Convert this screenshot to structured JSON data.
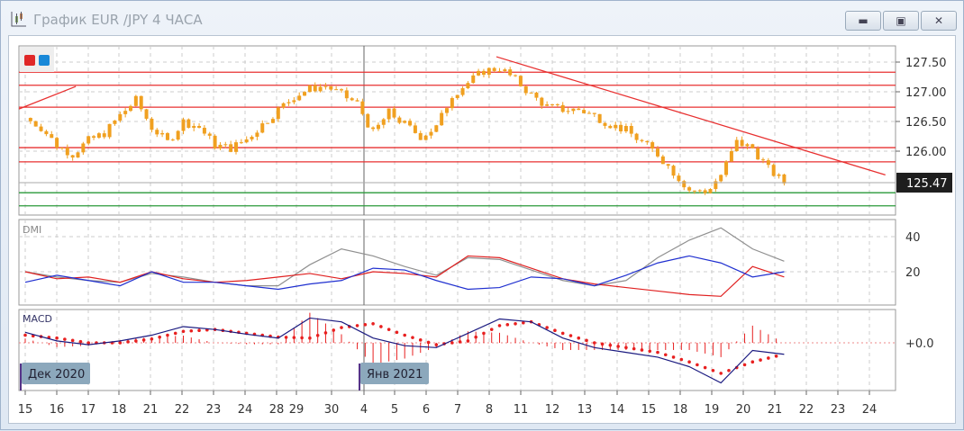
{
  "window": {
    "title": "График EUR /JPY  4 ЧАСА",
    "buttons": [
      "minimize",
      "maximize",
      "close"
    ]
  },
  "colors": {
    "candle": "#f0a020",
    "resistance": "#e83030",
    "support": "#2a9a3a",
    "dmi_adx": "#909090",
    "dmi_plus": "#2030d0",
    "dmi_minus": "#e02020",
    "macd": "#1a1a80",
    "signal": "#e82020",
    "price_tag": "#1e1e1e"
  },
  "chart_data": [
    {
      "type": "candlestick",
      "panel": "price",
      "x_ticks": [
        "15",
        "16",
        "17",
        "18",
        "21",
        "22",
        "23",
        "24",
        "28",
        "29",
        "30",
        "4",
        "5",
        "6",
        "7",
        "8",
        "11",
        "12",
        "13",
        "14",
        "15",
        "18",
        "19",
        "20",
        "21",
        "22",
        "23",
        "24"
      ],
      "month_labels": [
        {
          "label": "Дек 2020",
          "at": "15"
        },
        {
          "label": "Янв 2021",
          "at": "4"
        }
      ],
      "y_ticks": [
        "127.50",
        "127.00",
        "126.50",
        "126.00"
      ],
      "current_price": "125.47",
      "closes_half_day": [
        126.56,
        126.4,
        126.1,
        125.95,
        126.18,
        126.3,
        126.6,
        126.86,
        126.4,
        126.15,
        126.5,
        126.4,
        126.1,
        126.05,
        126.2,
        126.45,
        126.7,
        126.92,
        127.05,
        127.1,
        126.95,
        126.8,
        126.3,
        126.65,
        126.45,
        126.25,
        126.4,
        126.95,
        127.15,
        127.35,
        127.4,
        127.2,
        126.95,
        126.75,
        126.7,
        126.7,
        126.6,
        126.45,
        126.35,
        126.15,
        125.95,
        125.65,
        125.35,
        125.3,
        125.6,
        126.15,
        126.05,
        125.7,
        125.47
      ],
      "resistance_levels": [
        127.33,
        127.11,
        126.74,
        126.06,
        125.82
      ],
      "support_levels": [
        125.3,
        125.08
      ],
      "trend_lines": [
        [
          [
            -0.2,
            126.71
          ],
          [
            1.6,
            127.09
          ]
        ],
        [
          [
            14.9,
            127.59
          ],
          [
            27.2,
            125.6
          ]
        ]
      ],
      "ylim": [
        124.9,
        127.8
      ]
    },
    {
      "type": "line",
      "panel": "DMI",
      "title": "DMI",
      "y_ticks": [
        "40",
        "20"
      ],
      "ylim": [
        0,
        50
      ],
      "series": [
        {
          "values": [
            20,
            17,
            15,
            14,
            19,
            17,
            14,
            12,
            12,
            24,
            33,
            29,
            23,
            18,
            28,
            27,
            21,
            15,
            12,
            15,
            28,
            38,
            45,
            33,
            26
          ]
        },
        {
          "values": [
            20,
            16,
            17,
            14,
            20,
            16,
            14,
            15,
            17,
            19,
            16,
            20,
            19,
            17,
            29,
            28,
            22,
            16,
            13,
            11,
            9,
            7,
            6,
            23,
            17
          ]
        },
        {
          "values": [
            14,
            18,
            15,
            12,
            20,
            14,
            14,
            12,
            10,
            13,
            15,
            22,
            21,
            15,
            10,
            11,
            17,
            16,
            12,
            18,
            25,
            29,
            25,
            17,
            20
          ]
        }
      ]
    },
    {
      "type": "line",
      "panel": "MACD",
      "title": "MACD",
      "y_ticks": [
        "+0.0"
      ],
      "ylim": [
        -0.5,
        0.35
      ],
      "series": [
        {
          "values": [
            0.11,
            0.02,
            -0.02,
            0.02,
            0.08,
            0.17,
            0.14,
            0.09,
            0.05,
            0.26,
            0.22,
            0.05,
            -0.03,
            -0.05,
            0.1,
            0.25,
            0.22,
            0.05,
            -0.05,
            -0.1,
            -0.15,
            -0.25,
            -0.42,
            -0.08,
            -0.12
          ]
        },
        {
          "values": [
            0.08,
            0.05,
            0.0,
            0.0,
            0.04,
            0.12,
            0.14,
            0.1,
            0.06,
            0.05,
            0.16,
            0.2,
            0.08,
            -0.02,
            0.02,
            0.18,
            0.22,
            0.1,
            0.0,
            -0.05,
            -0.1,
            -0.2,
            -0.32,
            -0.2,
            -0.12
          ]
        }
      ]
    }
  ]
}
